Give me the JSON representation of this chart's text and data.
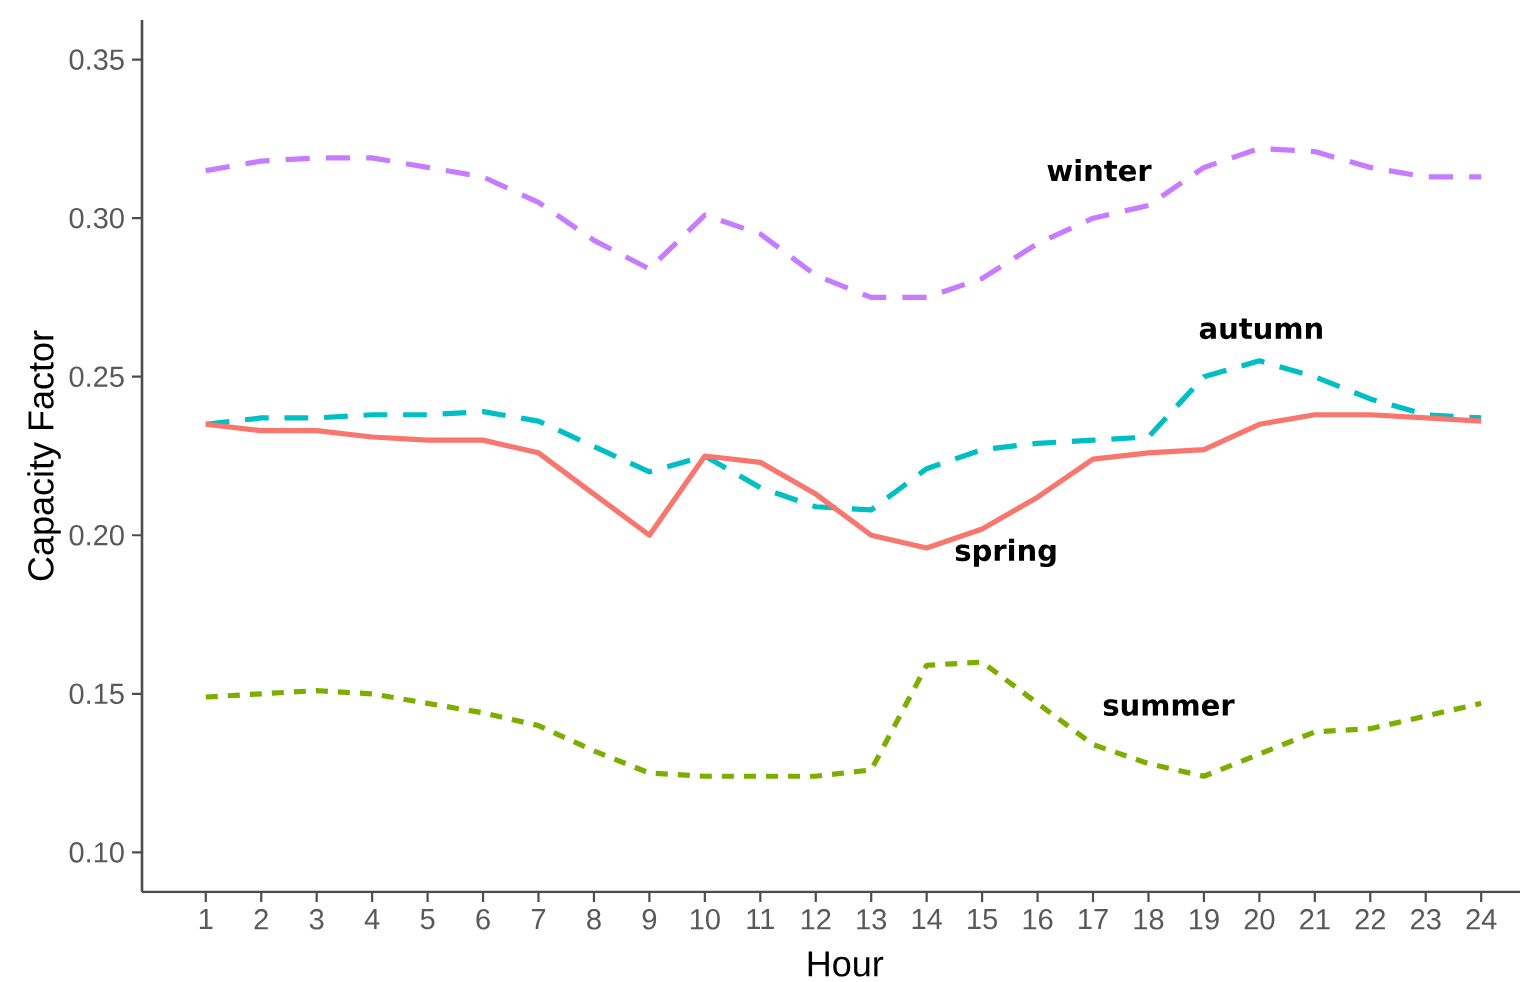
{
  "chart_data": {
    "type": "line",
    "xlabel": "Hour",
    "ylabel": "Capacity Factor",
    "x": [
      1,
      2,
      3,
      4,
      5,
      6,
      7,
      8,
      9,
      10,
      11,
      12,
      13,
      14,
      15,
      16,
      17,
      18,
      19,
      20,
      21,
      22,
      23,
      24
    ],
    "xlim": [
      -0.15,
      24.7
    ],
    "xticks": [
      1,
      2,
      3,
      4,
      5,
      6,
      7,
      8,
      9,
      10,
      11,
      12,
      13,
      14,
      15,
      16,
      17,
      18,
      19,
      20,
      21,
      22,
      23,
      24
    ],
    "ylim": [
      0.0875,
      0.3625
    ],
    "yticks": [
      {
        "value": 0.1,
        "label": "0.10"
      },
      {
        "value": 0.15,
        "label": "0.15"
      },
      {
        "value": 0.2,
        "label": "0.20"
      },
      {
        "value": 0.25,
        "label": "0.25"
      },
      {
        "value": 0.3,
        "label": "0.30"
      },
      {
        "value": 0.35,
        "label": "0.35"
      }
    ],
    "series": [
      {
        "name": "winter",
        "color": "#c77cff",
        "line_style": "dashed",
        "values": [
          0.315,
          0.318,
          0.319,
          0.319,
          0.316,
          0.313,
          0.305,
          0.293,
          0.284,
          0.301,
          0.295,
          0.282,
          0.275,
          0.275,
          0.281,
          0.292,
          0.3,
          0.304,
          0.316,
          0.322,
          0.321,
          0.316,
          0.313,
          0.313
        ]
      },
      {
        "name": "autumn",
        "color": "#00bfc4",
        "line_style": "dashed",
        "values": [
          0.235,
          0.237,
          0.237,
          0.238,
          0.238,
          0.239,
          0.236,
          0.228,
          0.22,
          0.225,
          0.215,
          0.209,
          0.208,
          0.221,
          0.227,
          0.229,
          0.23,
          0.231,
          0.25,
          0.255,
          0.25,
          0.243,
          0.238,
          0.237
        ]
      },
      {
        "name": "spring",
        "color": "#f8766d",
        "line_style": "solid",
        "values": [
          0.235,
          0.233,
          0.233,
          0.231,
          0.23,
          0.23,
          0.226,
          0.213,
          0.2,
          0.225,
          0.223,
          0.213,
          0.2,
          0.196,
          0.202,
          0.212,
          0.224,
          0.226,
          0.227,
          0.235,
          0.238,
          0.238,
          0.237,
          0.236
        ]
      },
      {
        "name": "summer",
        "color": "#7cae00",
        "line_style": "dotted",
        "values": [
          0.149,
          0.15,
          0.151,
          0.15,
          0.147,
          0.144,
          0.14,
          0.132,
          0.125,
          0.124,
          0.124,
          0.124,
          0.126,
          0.159,
          0.16,
          0.147,
          0.134,
          0.128,
          0.124,
          0.131,
          0.138,
          0.139,
          0.143,
          0.147
        ]
      }
    ]
  }
}
